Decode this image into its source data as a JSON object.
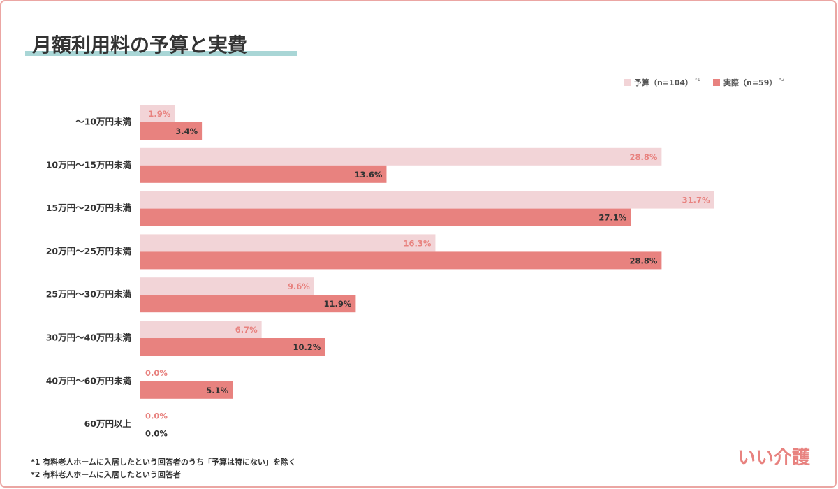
{
  "chart_data": {
    "type": "hbar-grouped",
    "title": "月額利用料の予算と実費",
    "categories": [
      "～10万円未満",
      "10万円～15万円未満",
      "15万円～20万円未満",
      "20万円～25万円未満",
      "25万円～30万円未満",
      "30万円～40万円未満",
      "40万円～60万円未満",
      "60万円以上"
    ],
    "series": [
      {
        "name": "予算（n=104）",
        "note_mark": "*1",
        "color": "#f2d4d7",
        "label_color": "#e8827f",
        "values": [
          1.9,
          28.8,
          31.7,
          16.3,
          9.6,
          6.7,
          0.0,
          0.0
        ],
        "value_labels": [
          "1.9%",
          "28.8%",
          "31.7%",
          "16.3%",
          "9.6%",
          "6.7%",
          "0.0%",
          "0.0%"
        ]
      },
      {
        "name": "実際（n=59）",
        "note_mark": "*2",
        "color": "#e8827f",
        "label_color": "#333333",
        "values": [
          3.4,
          13.6,
          27.1,
          28.8,
          11.9,
          10.2,
          5.1,
          0.0
        ],
        "value_labels": [
          "3.4%",
          "13.6%",
          "27.1%",
          "28.8%",
          "11.9%",
          "10.2%",
          "5.1%",
          "0.0%"
        ]
      }
    ],
    "xlim": [
      0,
      36
    ],
    "legend": "top-right",
    "footnotes": [
      "*1 有料老人ホームに入居したという回答者のうち「予算は特にない」を除く",
      "*2 有料老人ホームに入居したという回答者"
    ],
    "logo": "いい介護"
  }
}
